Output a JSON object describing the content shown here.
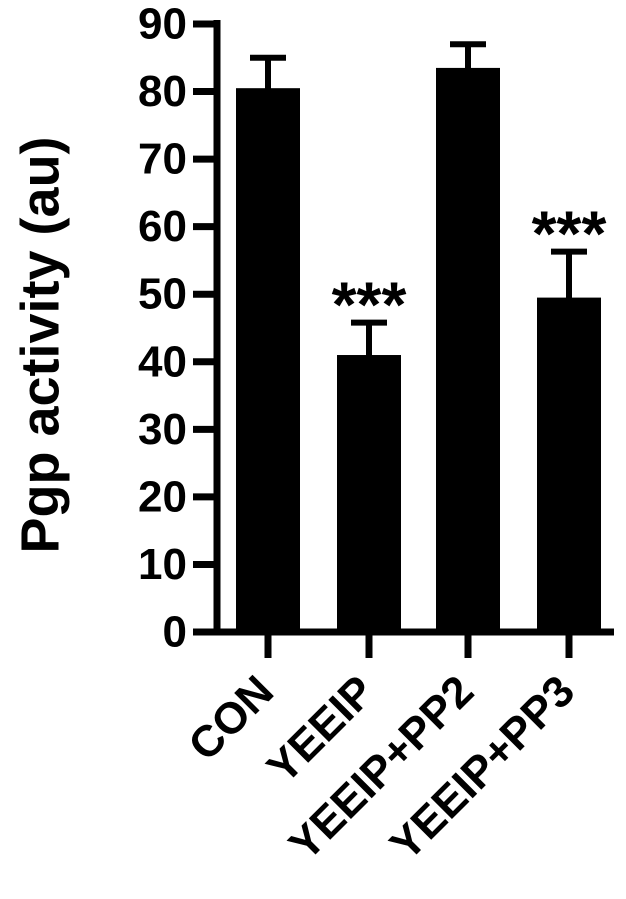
{
  "chart_data": {
    "type": "bar",
    "title": "",
    "xlabel": "",
    "ylabel": "Pgp activity (au)",
    "categories": [
      "CON",
      "YEEIP",
      "YEEIP+PP2",
      "YEEIP+PP3"
    ],
    "values": [
      80.5,
      41,
      83.5,
      49.5
    ],
    "error": [
      4.5,
      4.8,
      3.5,
      6.8
    ],
    "significance": [
      "",
      "***",
      "",
      "***"
    ],
    "ylim": [
      0,
      90
    ],
    "yticks": [
      0,
      10,
      20,
      30,
      40,
      50,
      60,
      70,
      80,
      90
    ],
    "ytick_labels": [
      "0",
      "10",
      "20",
      "30",
      "40",
      "50",
      "60",
      "70",
      "80",
      "90"
    ],
    "bar_color": "#000000",
    "grid": false,
    "legend": "none"
  }
}
